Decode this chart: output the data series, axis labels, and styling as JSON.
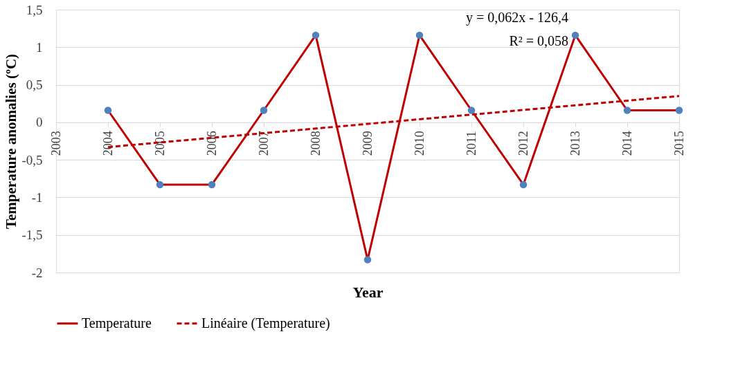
{
  "chart_data": {
    "type": "line",
    "xlabel": "Year",
    "ylabel": "Temperature anomalies (ºC)",
    "x": [
      2004,
      2005,
      2006,
      2007,
      2008,
      2009,
      2010,
      2011,
      2012,
      2013,
      2014,
      2015
    ],
    "xlim": [
      2003,
      2015
    ],
    "xticks": [
      2003,
      2004,
      2005,
      2006,
      2007,
      2008,
      2009,
      2010,
      2011,
      2012,
      2013,
      2014,
      2015
    ],
    "ylim": [
      -2,
      1.5
    ],
    "yticks": [
      {
        "value": -2,
        "label": "-2"
      },
      {
        "value": -1.5,
        "label": "-1,5"
      },
      {
        "value": -1,
        "label": "-1"
      },
      {
        "value": -0.5,
        "label": "-0,5"
      },
      {
        "value": 0,
        "label": "0"
      },
      {
        "value": 0.5,
        "label": "0,5"
      },
      {
        "value": 1,
        "label": "1"
      },
      {
        "value": 1.5,
        "label": "1,5"
      }
    ],
    "series": [
      {
        "name": "Temperature",
        "color": "#c00000",
        "marker": "circle",
        "line_style": "solid",
        "values": [
          0.16,
          -0.83,
          -0.83,
          0.16,
          1.16,
          -1.83,
          1.16,
          0.16,
          -0.83,
          1.16,
          0.16,
          0.16
        ]
      },
      {
        "name": "Linéaire (Temperature)",
        "type": "line",
        "color": "#c00000",
        "marker": "none",
        "line_style": "dashed",
        "x": [
          2004,
          2015
        ],
        "values": [
          -0.33,
          0.35
        ]
      }
    ],
    "annotations": [
      "y = 0,062x - 126,4",
      "R² = 0,058"
    ],
    "grid": "y",
    "legend": "bottom"
  }
}
